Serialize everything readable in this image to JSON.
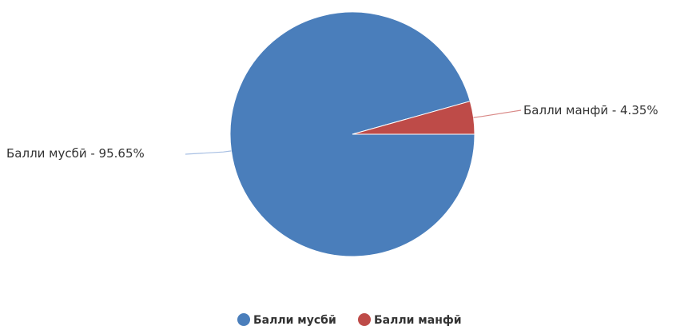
{
  "chart_data": {
    "type": "pie",
    "title": "",
    "series": [
      {
        "name": "",
        "values": [
          95.65,
          4.35
        ]
      }
    ],
    "categories": [
      "Балли мусбӣ",
      "Балли манфӣ"
    ],
    "slices": [
      {
        "label": "Балли мусбӣ",
        "value": 95.65,
        "display": "Балли мусбӣ - 95.65%",
        "color": "#4a7ebb"
      },
      {
        "label": "Балли манфӣ",
        "value": 4.35,
        "display": "Балли манфӣ - 4.35%",
        "color": "#be4b48"
      }
    ],
    "legend": {
      "position": "bottom",
      "items": [
        "Балли мусбӣ",
        "Балли манфӣ"
      ]
    },
    "grid": false
  }
}
